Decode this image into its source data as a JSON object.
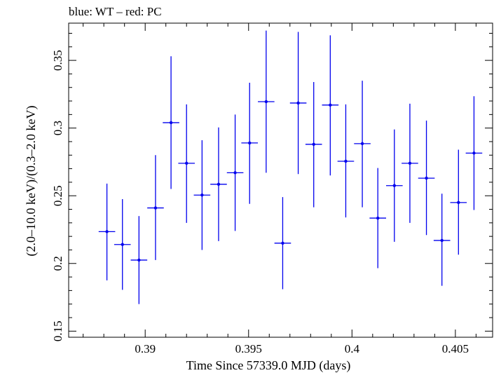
{
  "chart_data": {
    "type": "scatter",
    "title": "blue: WT – red: PC",
    "xlabel": "Time Since 57339.0 MJD (days)",
    "ylabel": "(2.0–10.0 keV)/(0.3–2.0 keV)",
    "xlim": [
      0.3863,
      0.4068
    ],
    "ylim": [
      0.1455,
      0.3775
    ],
    "x_ticks": [
      0.39,
      0.395,
      0.4,
      0.405
    ],
    "x_tick_labels": [
      "0.39",
      "0.395",
      "0.4",
      "0.405"
    ],
    "y_ticks": [
      0.15,
      0.2,
      0.25,
      0.3,
      0.35
    ],
    "y_tick_labels": [
      "0.15",
      "0.2",
      "0.25",
      "0.3",
      "0.35"
    ],
    "grid": false,
    "colors": {
      "series": "#0000ee",
      "axes": "#000000"
    },
    "series": [
      {
        "points": [
          {
            "x": 0.38815,
            "xerr": 0.0004,
            "y": 0.2235,
            "ylo": 0.1875,
            "yhi": 0.259
          },
          {
            "x": 0.3889,
            "xerr": 0.0004,
            "y": 0.214,
            "ylo": 0.1805,
            "yhi": 0.2475
          },
          {
            "x": 0.3897,
            "xerr": 0.0004,
            "y": 0.2025,
            "ylo": 0.17,
            "yhi": 0.235
          },
          {
            "x": 0.3905,
            "xerr": 0.0004,
            "y": 0.241,
            "ylo": 0.2025,
            "yhi": 0.28
          },
          {
            "x": 0.39125,
            "xerr": 0.0004,
            "y": 0.304,
            "ylo": 0.255,
            "yhi": 0.353
          },
          {
            "x": 0.392,
            "xerr": 0.0004,
            "y": 0.274,
            "ylo": 0.23,
            "yhi": 0.3175
          },
          {
            "x": 0.39275,
            "xerr": 0.0004,
            "y": 0.2505,
            "ylo": 0.21,
            "yhi": 0.291
          },
          {
            "x": 0.39355,
            "xerr": 0.0004,
            "y": 0.2585,
            "ylo": 0.2165,
            "yhi": 0.3005
          },
          {
            "x": 0.39435,
            "xerr": 0.0004,
            "y": 0.267,
            "ylo": 0.224,
            "yhi": 0.31
          },
          {
            "x": 0.39505,
            "xerr": 0.0004,
            "y": 0.289,
            "ylo": 0.244,
            "yhi": 0.3335
          },
          {
            "x": 0.39585,
            "xerr": 0.0004,
            "y": 0.3195,
            "ylo": 0.267,
            "yhi": 0.372
          },
          {
            "x": 0.39665,
            "xerr": 0.0004,
            "y": 0.215,
            "ylo": 0.181,
            "yhi": 0.249
          },
          {
            "x": 0.3974,
            "xerr": 0.0004,
            "y": 0.3185,
            "ylo": 0.266,
            "yhi": 0.371
          },
          {
            "x": 0.39815,
            "xerr": 0.0004,
            "y": 0.288,
            "ylo": 0.2415,
            "yhi": 0.334
          },
          {
            "x": 0.39895,
            "xerr": 0.0004,
            "y": 0.317,
            "ylo": 0.265,
            "yhi": 0.3685
          },
          {
            "x": 0.3997,
            "xerr": 0.0004,
            "y": 0.2755,
            "ylo": 0.234,
            "yhi": 0.3175
          },
          {
            "x": 0.4005,
            "xerr": 0.0004,
            "y": 0.2885,
            "ylo": 0.2415,
            "yhi": 0.335
          },
          {
            "x": 0.40125,
            "xerr": 0.0004,
            "y": 0.2335,
            "ylo": 0.1965,
            "yhi": 0.2705
          },
          {
            "x": 0.40205,
            "xerr": 0.0004,
            "y": 0.2575,
            "ylo": 0.216,
            "yhi": 0.299
          },
          {
            "x": 0.4028,
            "xerr": 0.0004,
            "y": 0.274,
            "ylo": 0.23,
            "yhi": 0.318
          },
          {
            "x": 0.4036,
            "xerr": 0.0004,
            "y": 0.263,
            "ylo": 0.221,
            "yhi": 0.3055
          },
          {
            "x": 0.40435,
            "xerr": 0.0004,
            "y": 0.217,
            "ylo": 0.1835,
            "yhi": 0.2515
          },
          {
            "x": 0.40515,
            "xerr": 0.0004,
            "y": 0.245,
            "ylo": 0.2065,
            "yhi": 0.284
          },
          {
            "x": 0.4059,
            "xerr": 0.0004,
            "y": 0.2815,
            "ylo": 0.2395,
            "yhi": 0.3235
          }
        ]
      }
    ]
  }
}
